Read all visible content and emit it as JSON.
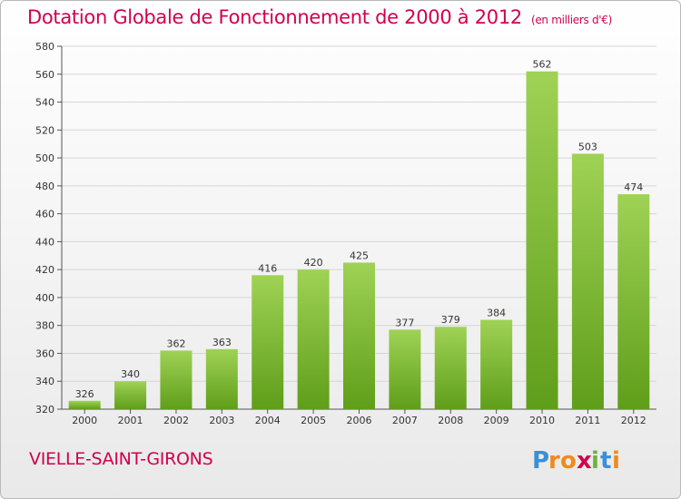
{
  "title": "Dotation Globale de Fonctionnement de 2000 à 2012",
  "subtitle": "(en milliers d'€)",
  "commune": "VIELLE-SAINT-GIRONS",
  "logo_text": "Proxiti",
  "colors": {
    "title": "#d1004d",
    "bar_light": "#9fd255",
    "bar_dark": "#5f9e1a",
    "grid": "#d6d6d6"
  },
  "chart_data": {
    "type": "bar",
    "title": "Dotation Globale de Fonctionnement de 2000 à 2012",
    "subtitle": "(en milliers d'€)",
    "categories": [
      "2000",
      "2001",
      "2002",
      "2003",
      "2004",
      "2005",
      "2006",
      "2007",
      "2008",
      "2009",
      "2010",
      "2011",
      "2012"
    ],
    "values": [
      326,
      340,
      362,
      363,
      416,
      420,
      425,
      377,
      379,
      384,
      562,
      503,
      474
    ],
    "ylim": [
      320,
      580
    ],
    "yticks": [
      320,
      340,
      360,
      380,
      400,
      420,
      440,
      460,
      480,
      500,
      520,
      540,
      560,
      580
    ],
    "grid": true,
    "legend": "none"
  }
}
